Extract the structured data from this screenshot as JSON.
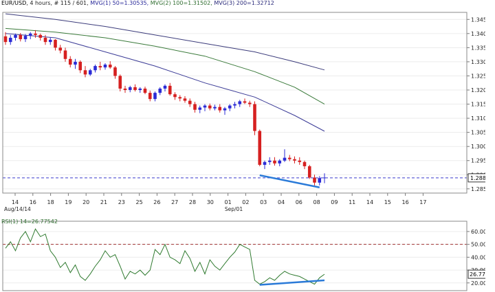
{
  "header": {
    "symbol": "EUR/USD",
    "info": ", 4 hours, # 115 / 601, ",
    "ma1": "MVG(1) 50=1.30535,",
    "ma2": "MVG(2) 100=1.31502,",
    "ma3": "MVG(3) 200=1.32712"
  },
  "rsi_header": "RSI(1) 14=26.77542",
  "price_axis": {
    "ticks": [
      "1.34500",
      "1.34000",
      "1.33500",
      "1.33000",
      "1.32500",
      "1.32000",
      "1.31500",
      "1.31000",
      "1.30500",
      "1.30000",
      "1.29500",
      "1.29000",
      "1.28500"
    ],
    "current": "1.28889"
  },
  "rsi_axis": {
    "ticks": [
      "60.00000",
      "50.00000",
      "40.00000",
      "30.00000",
      "20.00000"
    ],
    "current": "26.77542"
  },
  "x_axis": {
    "day_labels": [
      "14",
      "16",
      "18",
      "19",
      "20",
      "21",
      "23",
      "25",
      "26",
      "27",
      "28",
      "30",
      "01",
      "02",
      "03",
      "04",
      "06",
      "08",
      "09",
      "11",
      "14",
      "15",
      "16",
      "17"
    ],
    "period_labels": [
      "Aug/14/14",
      "Sep/01"
    ]
  },
  "colors": {
    "bull": "#2b2bd6",
    "bear": "#d62020",
    "ma1": "#3a3a96",
    "ma2": "#3a7a3a",
    "ma3": "#3a3a7a",
    "rsi": "#2f7a2f",
    "divergence": "#2a7ad8",
    "dashed_price": "#3a3acc",
    "dashed_rsi": "#a03030"
  },
  "chart_data": {
    "type": "candlestick",
    "timeframe": "4 hours",
    "y_range": [
      1.2835,
      1.3475
    ],
    "candles": [
      [
        1.339,
        1.3405,
        1.336,
        1.337
      ],
      [
        1.337,
        1.3395,
        1.336,
        1.3385
      ],
      [
        1.3385,
        1.34,
        1.3375,
        1.3395
      ],
      [
        1.3395,
        1.3402,
        1.3372,
        1.338
      ],
      [
        1.338,
        1.3398,
        1.337,
        1.3392
      ],
      [
        1.3392,
        1.3405,
        1.338,
        1.34
      ],
      [
        1.34,
        1.3412,
        1.3385,
        1.3395
      ],
      [
        1.3395,
        1.34,
        1.3375,
        1.3385
      ],
      [
        1.3385,
        1.3395,
        1.336,
        1.337
      ],
      [
        1.337,
        1.3385,
        1.336,
        1.3378
      ],
      [
        1.3378,
        1.338,
        1.334,
        1.335
      ],
      [
        1.335,
        1.336,
        1.333,
        1.334
      ],
      [
        1.334,
        1.335,
        1.33,
        1.331
      ],
      [
        1.331,
        1.332,
        1.328,
        1.329
      ],
      [
        1.329,
        1.331,
        1.3275,
        1.33
      ],
      [
        1.33,
        1.3305,
        1.326,
        1.327
      ],
      [
        1.327,
        1.3285,
        1.3245,
        1.3255
      ],
      [
        1.3255,
        1.3275,
        1.325,
        1.327
      ],
      [
        1.327,
        1.329,
        1.3262,
        1.3285
      ],
      [
        1.3285,
        1.33,
        1.327,
        1.328
      ],
      [
        1.328,
        1.3295,
        1.3272,
        1.329
      ],
      [
        1.329,
        1.3302,
        1.3275,
        1.328
      ],
      [
        1.328,
        1.3285,
        1.324,
        1.325
      ],
      [
        1.325,
        1.3255,
        1.3195,
        1.3205
      ],
      [
        1.3205,
        1.3215,
        1.319,
        1.32
      ],
      [
        1.32,
        1.3215,
        1.3192,
        1.321
      ],
      [
        1.321,
        1.322,
        1.3195,
        1.32
      ],
      [
        1.32,
        1.321,
        1.319,
        1.3205
      ],
      [
        1.3205,
        1.3212,
        1.3185,
        1.319
      ],
      [
        1.319,
        1.3198,
        1.316,
        1.3168
      ],
      [
        1.3168,
        1.3195,
        1.316,
        1.319
      ],
      [
        1.319,
        1.321,
        1.3182,
        1.3205
      ],
      [
        1.3205,
        1.322,
        1.3195,
        1.3215
      ],
      [
        1.3215,
        1.3225,
        1.318,
        1.3185
      ],
      [
        1.3185,
        1.3192,
        1.3165,
        1.3175
      ],
      [
        1.3175,
        1.3182,
        1.316,
        1.317
      ],
      [
        1.317,
        1.3178,
        1.3155,
        1.3162
      ],
      [
        1.3162,
        1.317,
        1.314,
        1.315
      ],
      [
        1.315,
        1.3158,
        1.312,
        1.313
      ],
      [
        1.313,
        1.3145,
        1.3118,
        1.3138
      ],
      [
        1.3138,
        1.315,
        1.3125,
        1.3145
      ],
      [
        1.3145,
        1.3152,
        1.3128,
        1.3135
      ],
      [
        1.3135,
        1.3148,
        1.3128,
        1.314
      ],
      [
        1.314,
        1.315,
        1.312,
        1.3128
      ],
      [
        1.3128,
        1.314,
        1.3112,
        1.3135
      ],
      [
        1.3135,
        1.315,
        1.3125,
        1.3145
      ],
      [
        1.3145,
        1.3158,
        1.3135,
        1.315
      ],
      [
        1.315,
        1.3165,
        1.314,
        1.316
      ],
      [
        1.316,
        1.317,
        1.315,
        1.3155
      ],
      [
        1.3155,
        1.3162,
        1.314,
        1.315
      ],
      [
        1.315,
        1.316,
        1.304,
        1.3055
      ],
      [
        1.3055,
        1.306,
        1.293,
        1.2935
      ],
      [
        1.2935,
        1.295,
        1.292,
        1.2945
      ],
      [
        1.2945,
        1.2962,
        1.2935,
        1.295
      ],
      [
        1.295,
        1.2962,
        1.2932,
        1.294
      ],
      [
        1.294,
        1.2955,
        1.293,
        1.295
      ],
      [
        1.295,
        1.299,
        1.2945,
        1.296
      ],
      [
        1.296,
        1.297,
        1.2948,
        1.2955
      ],
      [
        1.2955,
        1.2965,
        1.294,
        1.295
      ],
      [
        1.295,
        1.2962,
        1.2935,
        1.2945
      ],
      [
        1.2945,
        1.295,
        1.292,
        1.293
      ],
      [
        1.293,
        1.2935,
        1.2885,
        1.289
      ],
      [
        1.289,
        1.29,
        1.2862,
        1.2872
      ],
      [
        1.2872,
        1.2895,
        1.2862,
        1.2888
      ],
      [
        1.2888,
        1.2905,
        1.287,
        1.289
      ]
    ],
    "moving_averages": [
      {
        "name": "MVG(1) 50",
        "last": 1.30535,
        "points": [
          [
            0,
            1.34
          ],
          [
            10,
            1.3385
          ],
          [
            20,
            1.3335
          ],
          [
            30,
            1.3285
          ],
          [
            40,
            1.3225
          ],
          [
            50,
            1.3175
          ],
          [
            58,
            1.311
          ],
          [
            64,
            1.3054
          ]
        ]
      },
      {
        "name": "MVG(2) 100",
        "last": 1.31502,
        "points": [
          [
            0,
            1.3418
          ],
          [
            10,
            1.3405
          ],
          [
            20,
            1.3385
          ],
          [
            30,
            1.3355
          ],
          [
            40,
            1.332
          ],
          [
            50,
            1.3265
          ],
          [
            58,
            1.321
          ],
          [
            64,
            1.315
          ]
        ]
      },
      {
        "name": "MVG(3) 200",
        "last": 1.32712,
        "points": [
          [
            0,
            1.347
          ],
          [
            10,
            1.345
          ],
          [
            20,
            1.3425
          ],
          [
            30,
            1.3395
          ],
          [
            40,
            1.3365
          ],
          [
            50,
            1.3335
          ],
          [
            58,
            1.33
          ],
          [
            64,
            1.3271
          ]
        ]
      }
    ],
    "horizontal_line": 1.28889,
    "price_trendline": [
      [
        51,
        1.2898
      ],
      [
        63,
        1.2855
      ]
    ],
    "rsi": {
      "name": "RSI(1) 14",
      "last": 26.77542,
      "y_range": [
        14,
        68
      ],
      "levels": [
        50
      ],
      "values": [
        47,
        52,
        45,
        55,
        60,
        52,
        62,
        56,
        58,
        45,
        40,
        32,
        36,
        28,
        34,
        25,
        22,
        27,
        33,
        38,
        45,
        40,
        42,
        33,
        23,
        29,
        27,
        30,
        26,
        30,
        46,
        42,
        50,
        40,
        38,
        35,
        45,
        39,
        29,
        36,
        27,
        38,
        33,
        30,
        35,
        40,
        44,
        50,
        48,
        46,
        22,
        19,
        21,
        24,
        22,
        26,
        29,
        27,
        26,
        25,
        23,
        21,
        19,
        24,
        26.8
      ],
      "trendline": [
        [
          51,
          18.5
        ],
        [
          64,
          22
        ]
      ]
    }
  }
}
